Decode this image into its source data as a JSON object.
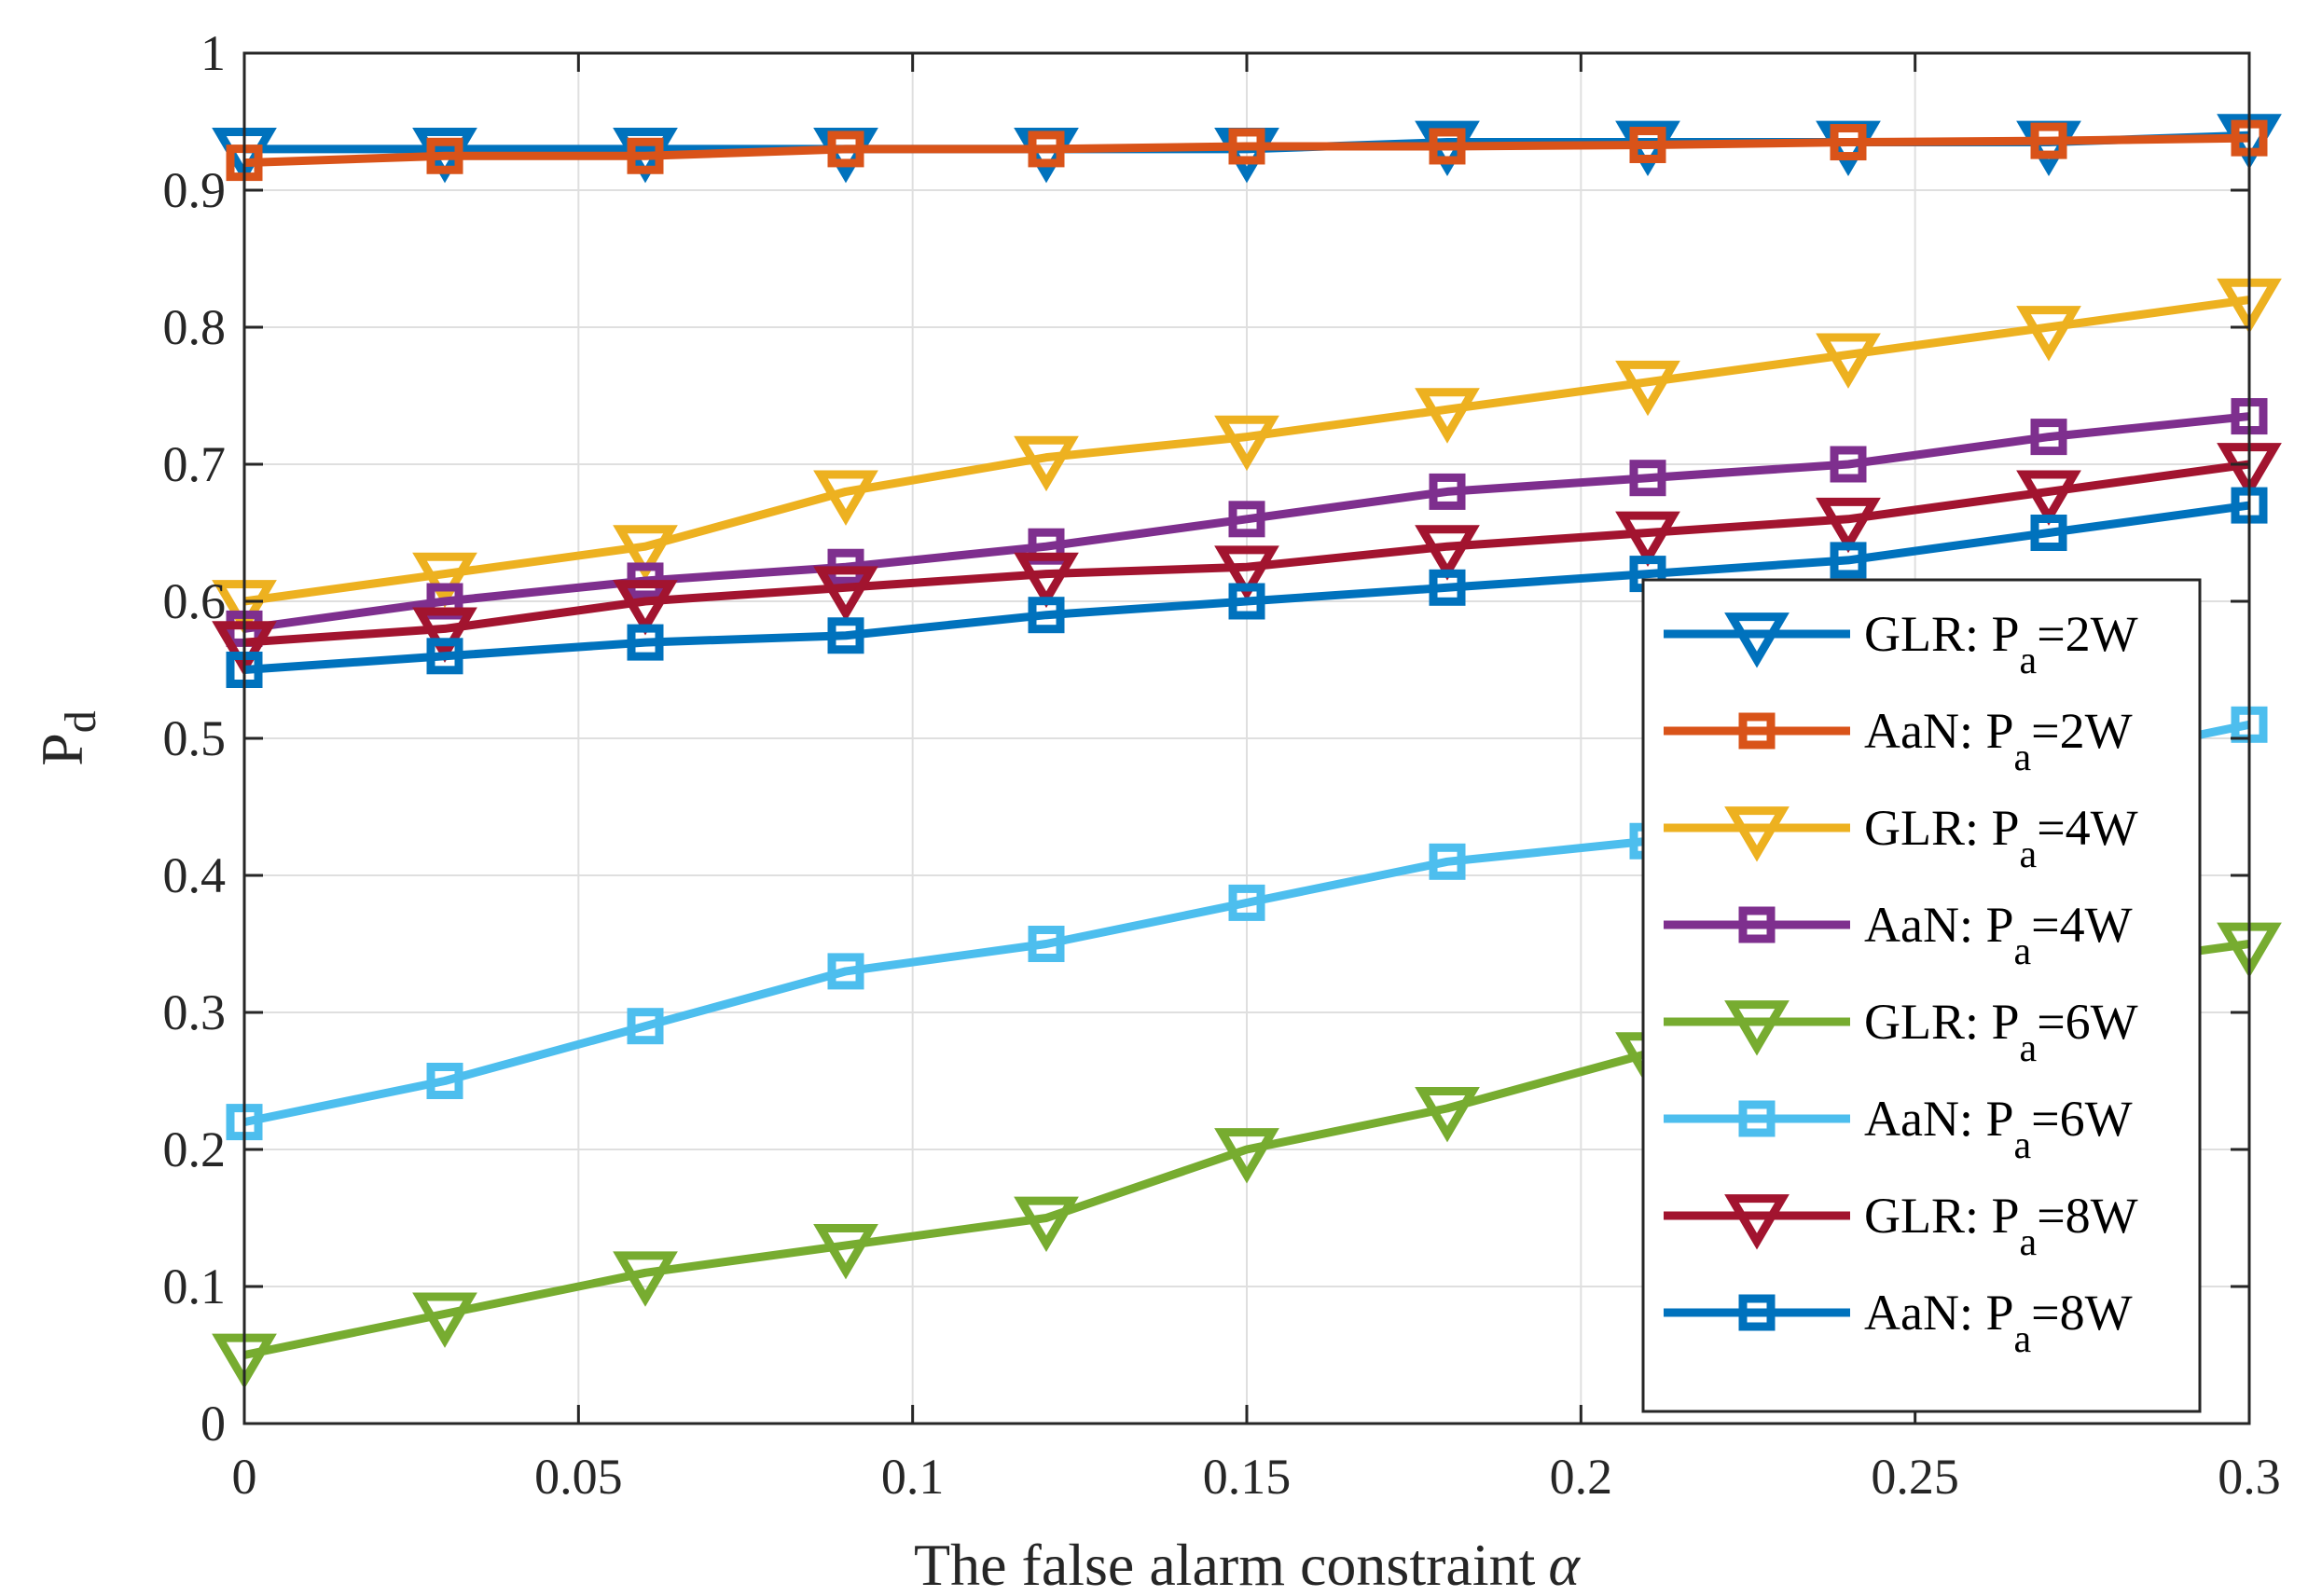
{
  "chart_data": {
    "type": "line",
    "xlabel": "The false alarm constraint",
    "xlabel_symbol": "α",
    "ylabel": "P",
    "ylabel_sub": "d",
    "xlim": [
      0,
      0.3
    ],
    "ylim": [
      0,
      1
    ],
    "x_ticks": [
      "0",
      "0.05",
      "0.1",
      "0.15",
      "0.2",
      "0.25",
      "0.3"
    ],
    "y_ticks": [
      "0",
      "0.1",
      "0.2",
      "0.3",
      "0.4",
      "0.5",
      "0.6",
      "0.7",
      "0.8",
      "0.9",
      "1"
    ],
    "grid": true,
    "legend_position": "right",
    "x": [
      0,
      0.03,
      0.06,
      0.09,
      0.12,
      0.15,
      0.18,
      0.21,
      0.24,
      0.27,
      0.3
    ],
    "series": [
      {
        "name": "GLR: P",
        "sub": "a",
        "suffix": "=2W",
        "color": "#0072BD",
        "marker": "triangle-down",
        "values": [
          0.93,
          0.93,
          0.93,
          0.93,
          0.93,
          0.93,
          0.935,
          0.935,
          0.935,
          0.935,
          0.94
        ]
      },
      {
        "name": "AaN: P",
        "sub": "a",
        "suffix": "=2W",
        "color": "#D95319",
        "marker": "square",
        "values": [
          0.92,
          0.925,
          0.925,
          0.93,
          0.93,
          0.932,
          0.932,
          0.933,
          0.935,
          0.936,
          0.938
        ]
      },
      {
        "name": "GLR: P",
        "sub": "a",
        "suffix": "=4W",
        "color": "#EDB120",
        "marker": "triangle-down",
        "values": [
          0.6,
          0.62,
          0.64,
          0.68,
          0.705,
          0.72,
          0.74,
          0.76,
          0.78,
          0.8,
          0.82
        ]
      },
      {
        "name": "AaN: P",
        "sub": "a",
        "suffix": "=4W",
        "color": "#7E2F8E",
        "marker": "square",
        "values": [
          0.58,
          0.6,
          0.615,
          0.625,
          0.64,
          0.66,
          0.68,
          0.69,
          0.7,
          0.72,
          0.735
        ]
      },
      {
        "name": "GLR: P",
        "sub": "a",
        "suffix": "=6W",
        "color": "#77AC30",
        "marker": "triangle-down",
        "values": [
          0.05,
          0.08,
          0.11,
          0.13,
          0.15,
          0.2,
          0.23,
          0.27,
          0.3,
          0.33,
          0.35
        ]
      },
      {
        "name": "AaN: P",
        "sub": "a",
        "suffix": "=6W",
        "color": "#4DBEEE",
        "marker": "square",
        "values": [
          0.22,
          0.25,
          0.29,
          0.33,
          0.35,
          0.38,
          0.41,
          0.425,
          0.45,
          0.48,
          0.51
        ]
      },
      {
        "name": "GLR: P",
        "sub": "a",
        "suffix": "=8W",
        "color": "#A2142F",
        "marker": "triangle-down",
        "values": [
          0.57,
          0.58,
          0.6,
          0.61,
          0.62,
          0.625,
          0.64,
          0.65,
          0.66,
          0.68,
          0.7
        ]
      },
      {
        "name": "AaN: P",
        "sub": "a",
        "suffix": "=8W",
        "color": "#0072BD",
        "marker": "square",
        "values": [
          0.55,
          0.56,
          0.57,
          0.575,
          0.59,
          0.6,
          0.61,
          0.62,
          0.63,
          0.65,
          0.67
        ]
      }
    ]
  }
}
